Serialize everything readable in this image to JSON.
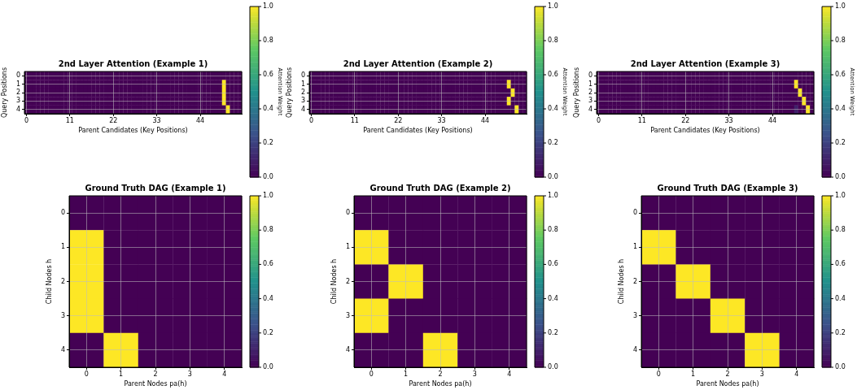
{
  "chart_data": [
    {
      "type": "heatmap",
      "title": "2nd Layer Attention (Example 1)",
      "xlabel": "Parent Candidates (Key Positions)",
      "ylabel": "Query Positions",
      "clabel": "Attention Weight",
      "grid": true,
      "categories": [
        "0",
        null,
        null,
        null,
        null,
        null,
        null,
        null,
        null,
        null,
        null,
        "11",
        null,
        null,
        null,
        null,
        null,
        null,
        null,
        null,
        null,
        null,
        "22",
        null,
        null,
        null,
        null,
        null,
        null,
        null,
        null,
        null,
        null,
        "33",
        null,
        null,
        null,
        null,
        null,
        null,
        null,
        null,
        null,
        null,
        "44",
        null,
        null,
        null,
        null,
        null,
        null,
        null,
        null,
        null,
        null
      ],
      "y_categories": [
        "0",
        "1",
        "2",
        "3",
        "4"
      ],
      "cells": [
        [
          0,
          0,
          0,
          0,
          0,
          0,
          0,
          0,
          0,
          0,
          0,
          0,
          0,
          0,
          0,
          0,
          0,
          0,
          0,
          0,
          0,
          0,
          0,
          0,
          0,
          0,
          0,
          0,
          0,
          0,
          0,
          0,
          0,
          0,
          0,
          0,
          0,
          0,
          0,
          0,
          0,
          0,
          0,
          0,
          0,
          0,
          0,
          0,
          0,
          0,
          0,
          0,
          0,
          0,
          0
        ],
        [
          0,
          0,
          0,
          0,
          0,
          0,
          0,
          0,
          0,
          0,
          0,
          0,
          0,
          0,
          0,
          0,
          0,
          0,
          0,
          0,
          0,
          0,
          0,
          0,
          0,
          0,
          0,
          0,
          0,
          0,
          0,
          0,
          0,
          0,
          0,
          0,
          0,
          0,
          0,
          0,
          0,
          0,
          0,
          0,
          0,
          0,
          0,
          0,
          0,
          0,
          1,
          0,
          0,
          0,
          0
        ],
        [
          0,
          0,
          0,
          0,
          0,
          0,
          0,
          0,
          0,
          0,
          0,
          0,
          0,
          0,
          0,
          0,
          0,
          0,
          0,
          0,
          0,
          0,
          0,
          0,
          0,
          0,
          0,
          0,
          0,
          0,
          0,
          0,
          0,
          0,
          0,
          0,
          0,
          0,
          0,
          0,
          0,
          0,
          0,
          0,
          0,
          0,
          0,
          0,
          0,
          0,
          1,
          0,
          0,
          0,
          0
        ],
        [
          0,
          0,
          0,
          0,
          0,
          0,
          0,
          0,
          0,
          0,
          0,
          0,
          0,
          0,
          0,
          0,
          0,
          0,
          0,
          0,
          0,
          0,
          0,
          0,
          0,
          0,
          0,
          0,
          0,
          0,
          0,
          0,
          0,
          0,
          0,
          0,
          0,
          0,
          0,
          0,
          0,
          0,
          0,
          0,
          0,
          0,
          0,
          0,
          0,
          0,
          1,
          0,
          0,
          0,
          0
        ],
        [
          0,
          0,
          0,
          0,
          0,
          0,
          0,
          0,
          0,
          0,
          0,
          0,
          0,
          0,
          0,
          0,
          0,
          0,
          0,
          0,
          0,
          0,
          0,
          0,
          0,
          0,
          0,
          0,
          0,
          0,
          0,
          0,
          0,
          0,
          0,
          0,
          0,
          0,
          0,
          0,
          0,
          0,
          0,
          0,
          0,
          0,
          0,
          0,
          0,
          0,
          0,
          1,
          0,
          0,
          0
        ]
      ],
      "clim": [
        0,
        1
      ],
      "cticks": [
        {
          "value": 0,
          "label": "0.0"
        },
        {
          "value": 0.2,
          "label": "0.2"
        },
        {
          "value": 0.4,
          "label": "0.4"
        },
        {
          "value": 0.6,
          "label": "0.6"
        },
        {
          "value": 0.8,
          "label": "0.8"
        },
        {
          "value": 1,
          "label": "1.0"
        }
      ]
    },
    {
      "type": "heatmap",
      "title": "2nd Layer Attention (Example 2)",
      "xlabel": "Parent Candidates (Key Positions)",
      "ylabel": "Query Positions",
      "clabel": "Attention Weight",
      "grid": true,
      "categories": [
        "0",
        null,
        null,
        null,
        null,
        null,
        null,
        null,
        null,
        null,
        null,
        "11",
        null,
        null,
        null,
        null,
        null,
        null,
        null,
        null,
        null,
        null,
        "22",
        null,
        null,
        null,
        null,
        null,
        null,
        null,
        null,
        null,
        null,
        "33",
        null,
        null,
        null,
        null,
        null,
        null,
        null,
        null,
        null,
        null,
        "44",
        null,
        null,
        null,
        null,
        null,
        null,
        null,
        null,
        null,
        null
      ],
      "y_categories": [
        "0",
        "1",
        "2",
        "3",
        "4"
      ],
      "cells": [
        [
          0,
          0,
          0,
          0,
          0,
          0,
          0,
          0,
          0,
          0,
          0,
          0,
          0,
          0,
          0,
          0,
          0,
          0,
          0,
          0,
          0,
          0,
          0,
          0,
          0,
          0,
          0,
          0,
          0,
          0,
          0,
          0,
          0,
          0,
          0,
          0,
          0,
          0,
          0,
          0,
          0,
          0,
          0,
          0,
          0,
          0,
          0,
          0,
          0,
          0,
          0,
          0,
          0,
          0,
          0
        ],
        [
          0,
          0,
          0,
          0,
          0,
          0,
          0,
          0,
          0,
          0,
          0,
          0,
          0,
          0,
          0,
          0,
          0,
          0,
          0,
          0,
          0,
          0,
          0,
          0,
          0,
          0,
          0,
          0,
          0,
          0,
          0,
          0,
          0,
          0,
          0,
          0,
          0,
          0,
          0,
          0,
          0,
          0,
          0,
          0,
          0,
          0,
          0,
          0,
          0,
          0,
          1,
          0,
          0,
          0,
          0
        ],
        [
          0,
          0,
          0,
          0,
          0,
          0,
          0,
          0,
          0,
          0,
          0,
          0,
          0,
          0,
          0,
          0,
          0,
          0,
          0,
          0,
          0,
          0,
          0,
          0,
          0,
          0,
          0,
          0,
          0,
          0,
          0,
          0,
          0,
          0,
          0,
          0,
          0,
          0,
          0,
          0,
          0,
          0,
          0,
          0,
          0,
          0,
          0,
          0,
          0,
          0,
          0,
          1,
          0,
          0,
          0
        ],
        [
          0,
          0,
          0,
          0,
          0,
          0,
          0,
          0,
          0,
          0,
          0,
          0,
          0,
          0,
          0,
          0,
          0,
          0,
          0,
          0,
          0,
          0,
          0,
          0,
          0,
          0,
          0,
          0,
          0,
          0,
          0,
          0,
          0,
          0,
          0,
          0,
          0,
          0,
          0,
          0,
          0,
          0,
          0,
          0,
          0,
          0,
          0,
          0,
          0,
          0,
          1,
          0,
          0,
          0,
          0
        ],
        [
          0,
          0,
          0,
          0,
          0,
          0,
          0,
          0,
          0,
          0,
          0,
          0,
          0,
          0,
          0,
          0,
          0,
          0,
          0,
          0,
          0,
          0,
          0,
          0,
          0,
          0,
          0,
          0,
          0,
          0,
          0,
          0,
          0,
          0,
          0,
          0,
          0,
          0,
          0,
          0,
          0,
          0,
          0,
          0,
          0,
          0,
          0,
          0,
          0,
          0,
          0,
          0,
          1,
          0,
          0
        ]
      ],
      "clim": [
        0,
        1
      ],
      "cticks": [
        {
          "value": 0,
          "label": "0.0"
        },
        {
          "value": 0.2,
          "label": "0.2"
        },
        {
          "value": 0.4,
          "label": "0.4"
        },
        {
          "value": 0.6,
          "label": "0.6"
        },
        {
          "value": 0.8,
          "label": "0.8"
        },
        {
          "value": 1,
          "label": "1.0"
        }
      ]
    },
    {
      "type": "heatmap",
      "title": "2nd Layer Attention (Example 3)",
      "xlabel": "Parent Candidates (Key Positions)",
      "ylabel": "Query Positions",
      "clabel": "Attention Weight",
      "grid": true,
      "categories": [
        "0",
        null,
        null,
        null,
        null,
        null,
        null,
        null,
        null,
        null,
        null,
        "11",
        null,
        null,
        null,
        null,
        null,
        null,
        null,
        null,
        null,
        null,
        "22",
        null,
        null,
        null,
        null,
        null,
        null,
        null,
        null,
        null,
        null,
        "33",
        null,
        null,
        null,
        null,
        null,
        null,
        null,
        null,
        null,
        null,
        "44",
        null,
        null,
        null,
        null,
        null,
        null,
        null,
        null,
        null,
        null
      ],
      "y_categories": [
        "0",
        "1",
        "2",
        "3",
        "4"
      ],
      "cells": [
        [
          0,
          0,
          0,
          0,
          0,
          0,
          0,
          0,
          0,
          0,
          0,
          0,
          0,
          0,
          0,
          0,
          0,
          0,
          0,
          0,
          0,
          0,
          0,
          0,
          0,
          0,
          0,
          0,
          0,
          0,
          0,
          0,
          0,
          0,
          0,
          0,
          0,
          0,
          0,
          0,
          0,
          0,
          0,
          0,
          0,
          0,
          0,
          0,
          0,
          0,
          0,
          0,
          0,
          0,
          0
        ],
        [
          0,
          0,
          0,
          0,
          0,
          0,
          0,
          0,
          0,
          0,
          0,
          0,
          0,
          0,
          0,
          0,
          0,
          0,
          0,
          0,
          0,
          0,
          0,
          0,
          0,
          0,
          0,
          0,
          0,
          0,
          0,
          0,
          0,
          0,
          0,
          0,
          0,
          0,
          0,
          0,
          0,
          0,
          0,
          0,
          0,
          0,
          0,
          0,
          0,
          0,
          1,
          0,
          0,
          0,
          0
        ],
        [
          0,
          0,
          0,
          0,
          0,
          0,
          0,
          0,
          0,
          0,
          0,
          0,
          0,
          0,
          0,
          0,
          0,
          0,
          0,
          0,
          0,
          0,
          0,
          0,
          0,
          0,
          0,
          0,
          0,
          0,
          0,
          0,
          0,
          0,
          0,
          0,
          0,
          0,
          0,
          0,
          0,
          0,
          0,
          0,
          0,
          0,
          0,
          0,
          0,
          0,
          0,
          1,
          0,
          0,
          0
        ],
        [
          0,
          0,
          0,
          0,
          0,
          0,
          0,
          0,
          0,
          0,
          0,
          0,
          0,
          0,
          0,
          0,
          0,
          0,
          0,
          0,
          0,
          0,
          0,
          0,
          0,
          0,
          0,
          0,
          0,
          0,
          0,
          0,
          0,
          0,
          0,
          0,
          0,
          0,
          0,
          0,
          0,
          0,
          0,
          0,
          0,
          0,
          0,
          0,
          0,
          0,
          0,
          0,
          1,
          0,
          0
        ],
        [
          0,
          0,
          0,
          0,
          0,
          0,
          0,
          0,
          0,
          0,
          0,
          0,
          0,
          0,
          0,
          0,
          0,
          0,
          0,
          0,
          0,
          0,
          0,
          0,
          0,
          0,
          0,
          0,
          0,
          0,
          0,
          0,
          0,
          0,
          0,
          0,
          0,
          0,
          0,
          0,
          0,
          0,
          0,
          0,
          0,
          0,
          0,
          0,
          0,
          0,
          0.1,
          0,
          0,
          1,
          0
        ]
      ],
      "clim": [
        0,
        1
      ],
      "cticks": [
        {
          "value": 0,
          "label": "0.0"
        },
        {
          "value": 0.2,
          "label": "0.2"
        },
        {
          "value": 0.4,
          "label": "0.4"
        },
        {
          "value": 0.6,
          "label": "0.6"
        },
        {
          "value": 0.8,
          "label": "0.8"
        },
        {
          "value": 1,
          "label": "1.0"
        }
      ]
    },
    {
      "type": "heatmap",
      "title": "Ground Truth DAG (Example 1)",
      "xlabel": "Parent Nodes pa(h)",
      "ylabel": "Child Nodes h",
      "grid": true,
      "categories": [
        "0",
        "1",
        "2",
        "3",
        "4"
      ],
      "y_categories": [
        "0",
        "1",
        "2",
        "3",
        "4"
      ],
      "cells": [
        [
          0,
          0,
          0,
          0,
          0
        ],
        [
          1,
          0,
          0,
          0,
          0
        ],
        [
          1,
          0,
          0,
          0,
          0
        ],
        [
          1,
          0,
          0,
          0,
          0
        ],
        [
          0,
          1,
          0,
          0,
          0
        ]
      ],
      "clim": [
        0,
        1
      ],
      "cticks": [
        {
          "value": 0,
          "label": "0.0"
        },
        {
          "value": 0.2,
          "label": "0.2"
        },
        {
          "value": 0.4,
          "label": "0.4"
        },
        {
          "value": 0.6,
          "label": "0.6"
        },
        {
          "value": 0.8,
          "label": "0.8"
        },
        {
          "value": 1,
          "label": "1.0"
        }
      ]
    },
    {
      "type": "heatmap",
      "title": "Ground Truth DAG (Example 2)",
      "xlabel": "Parent Nodes pa(h)",
      "ylabel": "Child Nodes h",
      "grid": true,
      "categories": [
        "0",
        "1",
        "2",
        "3",
        "4"
      ],
      "y_categories": [
        "0",
        "1",
        "2",
        "3",
        "4"
      ],
      "cells": [
        [
          0,
          0,
          0,
          0,
          0
        ],
        [
          1,
          0,
          0,
          0,
          0
        ],
        [
          0,
          1,
          0,
          0,
          0
        ],
        [
          1,
          0,
          0,
          0,
          0
        ],
        [
          0,
          0,
          1,
          0,
          0
        ]
      ],
      "clim": [
        0,
        1
      ],
      "cticks": [
        {
          "value": 0,
          "label": "0.0"
        },
        {
          "value": 0.2,
          "label": "0.2"
        },
        {
          "value": 0.4,
          "label": "0.4"
        },
        {
          "value": 0.6,
          "label": "0.6"
        },
        {
          "value": 0.8,
          "label": "0.8"
        },
        {
          "value": 1,
          "label": "1.0"
        }
      ]
    },
    {
      "type": "heatmap",
      "title": "Ground Truth DAG (Example 3)",
      "xlabel": "Parent Nodes pa(h)",
      "ylabel": "Child Nodes h",
      "grid": true,
      "categories": [
        "0",
        "1",
        "2",
        "3",
        "4"
      ],
      "y_categories": [
        "0",
        "1",
        "2",
        "3",
        "4"
      ],
      "cells": [
        [
          0,
          0,
          0,
          0,
          0
        ],
        [
          1,
          0,
          0,
          0,
          0
        ],
        [
          0,
          1,
          0,
          0,
          0
        ],
        [
          0,
          0,
          1,
          0,
          0
        ],
        [
          0,
          0,
          0,
          1,
          0
        ]
      ],
      "clim": [
        0,
        1
      ],
      "cticks": [
        {
          "value": 0,
          "label": "0.0"
        },
        {
          "value": 0.2,
          "label": "0.2"
        },
        {
          "value": 0.4,
          "label": "0.4"
        },
        {
          "value": 0.6,
          "label": "0.6"
        },
        {
          "value": 0.8,
          "label": "0.8"
        },
        {
          "value": 1,
          "label": "1.0"
        }
      ]
    }
  ]
}
